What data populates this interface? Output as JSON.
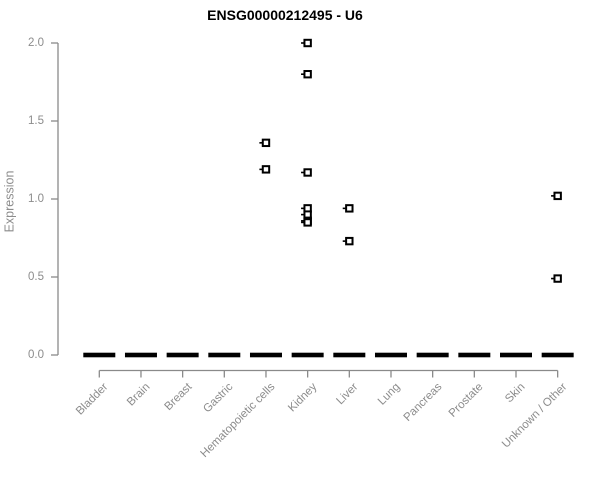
{
  "chart_data": {
    "type": "scatter",
    "title": "ENSG00000212495 - U6",
    "xlabel": "",
    "ylabel": "Expression",
    "ylim": [
      0.0,
      2.0
    ],
    "yticks": [
      0.0,
      0.5,
      1.0,
      1.5,
      2.0
    ],
    "grid": false,
    "legend": "none",
    "marker": "open-square-with-left-tick",
    "categories": [
      "Bladder",
      "Brain",
      "Breast",
      "Gastric",
      "Hematopoietic cells",
      "Kidney",
      "Liver",
      "Lung",
      "Pancreas",
      "Prostate",
      "Skin",
      "Unknown / Other"
    ],
    "points": [
      {
        "category": "Hematopoietic cells",
        "value": 1.36
      },
      {
        "category": "Hematopoietic cells",
        "value": 1.19
      },
      {
        "category": "Kidney",
        "value": 2.0
      },
      {
        "category": "Kidney",
        "value": 1.8
      },
      {
        "category": "Kidney",
        "value": 1.17
      },
      {
        "category": "Kidney",
        "value": 0.94
      },
      {
        "category": "Kidney",
        "value": 0.9
      },
      {
        "category": "Kidney",
        "value": 0.86
      },
      {
        "category": "Kidney",
        "value": 0.85
      },
      {
        "category": "Liver",
        "value": 0.94
      },
      {
        "category": "Liver",
        "value": 0.73
      },
      {
        "category": "Unknown / Other",
        "value": 1.02
      },
      {
        "category": "Unknown / Other",
        "value": 0.49
      }
    ],
    "zero_dashes": [
      {
        "category": "Bladder",
        "value": 0.0
      },
      {
        "category": "Brain",
        "value": 0.0
      },
      {
        "category": "Breast",
        "value": 0.0
      },
      {
        "category": "Gastric",
        "value": 0.0
      },
      {
        "category": "Hematopoietic cells",
        "value": 0.0
      },
      {
        "category": "Kidney",
        "value": 0.0
      },
      {
        "category": "Liver",
        "value": 0.0
      },
      {
        "category": "Lung",
        "value": 0.0
      },
      {
        "category": "Pancreas",
        "value": 0.0
      },
      {
        "category": "Prostate",
        "value": 0.0
      },
      {
        "category": "Skin",
        "value": 0.0
      },
      {
        "category": "Unknown / Other",
        "value": 0.0
      }
    ],
    "colors": {
      "marker": "#000000",
      "zero_dash": "#000000",
      "axis_line": "#8a8a8a",
      "tick_label": "#8c8c8c",
      "title": "#000000",
      "background": "#ffffff"
    }
  }
}
